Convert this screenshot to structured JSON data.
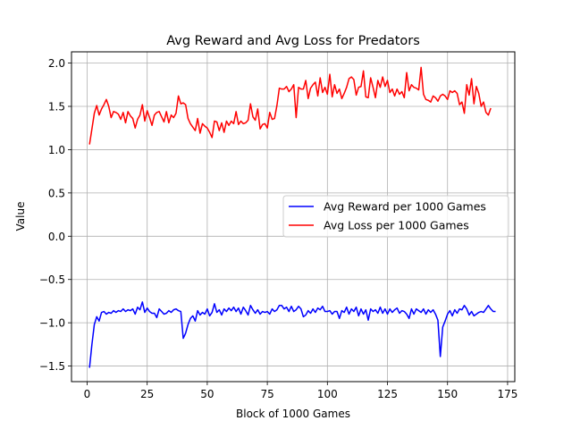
{
  "chart_data": {
    "type": "line",
    "title": "Avg Reward and Avg Loss for Predators",
    "xlabel": "Block of 1000 Games",
    "ylabel": "Value",
    "xlim": [
      -6.5,
      178
    ],
    "ylim": [
      -1.68,
      2.13
    ],
    "xticks": [
      0,
      25,
      50,
      75,
      100,
      125,
      150,
      175
    ],
    "yticks": [
      -1.5,
      -1.0,
      -0.5,
      0.0,
      0.5,
      1.0,
      1.5,
      2.0
    ],
    "ytick_labels": [
      "−1.5",
      "−1.0",
      "−0.5",
      "0.0",
      "0.5",
      "1.0",
      "1.5",
      "2.0"
    ],
    "grid": true,
    "legend_position": "center-right",
    "series": [
      {
        "name": "Avg Reward per 1000 Games",
        "color": "#0000ff",
        "x_start": 1,
        "values": [
          -1.52,
          -1.25,
          -1.02,
          -0.93,
          -0.98,
          -0.88,
          -0.87,
          -0.9,
          -0.88,
          -0.89,
          -0.86,
          -0.88,
          -0.86,
          -0.87,
          -0.84,
          -0.87,
          -0.85,
          -0.86,
          -0.84,
          -0.9,
          -0.82,
          -0.85,
          -0.76,
          -0.88,
          -0.83,
          -0.87,
          -0.89,
          -0.89,
          -0.94,
          -0.84,
          -0.87,
          -0.9,
          -0.89,
          -0.86,
          -0.88,
          -0.85,
          -0.84,
          -0.86,
          -0.87,
          -1.18,
          -1.12,
          -1.02,
          -0.95,
          -0.92,
          -0.98,
          -0.86,
          -0.91,
          -0.88,
          -0.9,
          -0.84,
          -0.92,
          -0.88,
          -0.78,
          -0.88,
          -0.85,
          -0.91,
          -0.84,
          -0.87,
          -0.83,
          -0.86,
          -0.82,
          -0.87,
          -0.83,
          -0.9,
          -0.82,
          -0.86,
          -0.91,
          -0.8,
          -0.85,
          -0.89,
          -0.85,
          -0.9,
          -0.87,
          -0.88,
          -0.87,
          -0.9,
          -0.84,
          -0.87,
          -0.85,
          -0.8,
          -0.8,
          -0.84,
          -0.82,
          -0.87,
          -0.81,
          -0.87,
          -0.85,
          -0.81,
          -0.84,
          -0.93,
          -0.91,
          -0.86,
          -0.89,
          -0.84,
          -0.88,
          -0.83,
          -0.85,
          -0.81,
          -0.87,
          -0.87,
          -0.86,
          -0.9,
          -0.87,
          -0.87,
          -0.95,
          -0.86,
          -0.88,
          -0.82,
          -0.9,
          -0.84,
          -0.87,
          -0.82,
          -0.92,
          -0.84,
          -0.9,
          -0.85,
          -0.97,
          -0.84,
          -0.87,
          -0.85,
          -0.89,
          -0.82,
          -0.89,
          -0.84,
          -0.9,
          -0.84,
          -0.88,
          -0.85,
          -0.83,
          -0.89,
          -0.86,
          -0.87,
          -0.9,
          -0.95,
          -0.84,
          -0.9,
          -0.84,
          -0.86,
          -0.88,
          -0.84,
          -0.9,
          -0.85,
          -0.88,
          -0.85,
          -0.9,
          -0.97,
          -1.39,
          -1.05,
          -0.98,
          -0.9,
          -0.86,
          -0.92,
          -0.85,
          -0.89,
          -0.84,
          -0.85,
          -0.8,
          -0.84,
          -0.91,
          -0.87,
          -0.92,
          -0.9,
          -0.88,
          -0.87,
          -0.88,
          -0.84,
          -0.8,
          -0.84,
          -0.87,
          -0.87
        ]
      },
      {
        "name": "Avg Loss per 1000 Games",
        "color": "#ff0000",
        "x_start": 1,
        "values": [
          1.06,
          1.24,
          1.42,
          1.51,
          1.4,
          1.47,
          1.52,
          1.58,
          1.5,
          1.37,
          1.44,
          1.43,
          1.41,
          1.35,
          1.43,
          1.31,
          1.44,
          1.39,
          1.36,
          1.25,
          1.35,
          1.4,
          1.52,
          1.33,
          1.45,
          1.37,
          1.28,
          1.4,
          1.43,
          1.44,
          1.38,
          1.32,
          1.44,
          1.31,
          1.4,
          1.37,
          1.42,
          1.62,
          1.53,
          1.54,
          1.52,
          1.36,
          1.3,
          1.26,
          1.22,
          1.36,
          1.19,
          1.3,
          1.27,
          1.25,
          1.2,
          1.14,
          1.33,
          1.32,
          1.22,
          1.31,
          1.2,
          1.33,
          1.28,
          1.33,
          1.3,
          1.44,
          1.29,
          1.33,
          1.3,
          1.31,
          1.34,
          1.53,
          1.38,
          1.34,
          1.47,
          1.24,
          1.29,
          1.3,
          1.25,
          1.43,
          1.35,
          1.36,
          1.51,
          1.71,
          1.7,
          1.7,
          1.73,
          1.67,
          1.7,
          1.75,
          1.37,
          1.72,
          1.7,
          1.7,
          1.8,
          1.59,
          1.71,
          1.75,
          1.78,
          1.62,
          1.83,
          1.66,
          1.72,
          1.64,
          1.87,
          1.61,
          1.75,
          1.65,
          1.7,
          1.59,
          1.65,
          1.72,
          1.82,
          1.84,
          1.81,
          1.63,
          1.72,
          1.73,
          1.91,
          1.61,
          1.6,
          1.83,
          1.72,
          1.6,
          1.8,
          1.72,
          1.84,
          1.73,
          1.8,
          1.66,
          1.7,
          1.62,
          1.7,
          1.64,
          1.67,
          1.6,
          1.89,
          1.68,
          1.75,
          1.72,
          1.71,
          1.69,
          1.95,
          1.64,
          1.58,
          1.57,
          1.55,
          1.62,
          1.6,
          1.56,
          1.62,
          1.64,
          1.62,
          1.58,
          1.68,
          1.66,
          1.68,
          1.65,
          1.52,
          1.55,
          1.42,
          1.75,
          1.63,
          1.82,
          1.53,
          1.73,
          1.65,
          1.5,
          1.55,
          1.43,
          1.4,
          1.48
        ]
      }
    ]
  }
}
